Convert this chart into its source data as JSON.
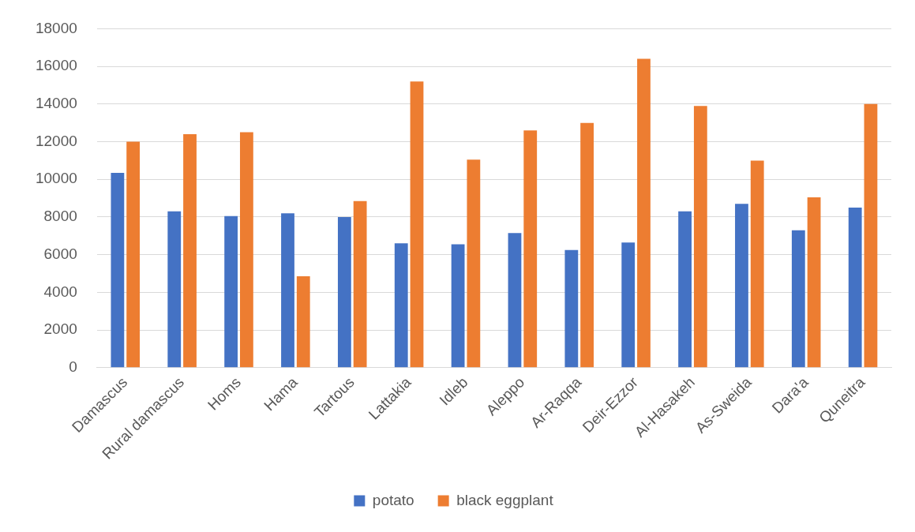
{
  "chart_data": {
    "type": "bar",
    "categories": [
      "Damascus",
      "Rural damascus",
      "Homs",
      "Hama",
      "Tartous",
      "Lattakia",
      "Idleb",
      "Aleppo",
      "Ar-Raqqa",
      "Deir-Ezzor",
      "Al-Hasakeh",
      "As-Sweida",
      "Dara'a",
      "Quneitra"
    ],
    "series": [
      {
        "name": "potato",
        "color": "#4472c4",
        "values": [
          10350,
          8300,
          8050,
          8200,
          8000,
          6600,
          6550,
          7150,
          6250,
          6650,
          8300,
          8700,
          7300,
          8500
        ]
      },
      {
        "name": "black eggplant",
        "color": "#ed7d31",
        "values": [
          12000,
          12400,
          12500,
          4850,
          8850,
          15200,
          11050,
          12600,
          13000,
          16400,
          13900,
          11000,
          9050,
          14000
        ]
      }
    ],
    "ylim": [
      0,
      18000
    ],
    "yticks": [
      0,
      2000,
      4000,
      6000,
      8000,
      10000,
      12000,
      14000,
      16000,
      18000
    ],
    "grid": "y",
    "legend": "bottom"
  }
}
